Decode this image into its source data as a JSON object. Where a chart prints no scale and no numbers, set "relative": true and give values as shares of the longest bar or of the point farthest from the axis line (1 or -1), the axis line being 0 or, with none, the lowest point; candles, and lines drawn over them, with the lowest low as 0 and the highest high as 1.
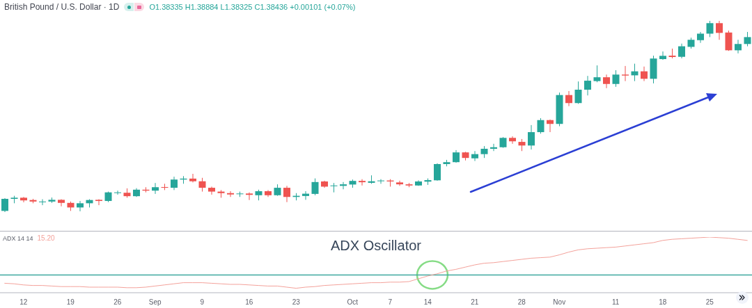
{
  "chart_data": [
    {
      "type": "candlestick",
      "title": "British Pound / U.S. Dollar · 1D",
      "annotations": [
        "O1.38335 H1.38884 L1.38325 C1.38436 +0.00101 (+0.07%)"
      ],
      "relative": true,
      "categories": [
        null,
        null,
        null,
        null,
        null,
        null,
        null,
        null,
        null,
        null,
        null,
        null,
        null,
        null,
        null,
        null,
        null,
        null,
        null,
        null,
        null,
        null,
        null,
        null,
        null,
        null,
        null,
        null,
        null,
        null,
        null,
        null,
        null,
        null,
        null,
        null,
        null,
        null,
        null,
        null,
        null,
        null,
        null,
        null,
        null,
        null,
        null,
        null,
        null,
        null,
        null,
        null,
        null,
        null,
        null,
        null,
        null,
        null,
        null,
        null,
        null,
        null,
        null,
        null,
        null,
        null,
        null,
        null,
        null,
        null,
        null,
        null,
        null,
        null,
        null,
        null,
        null,
        null,
        null,
        null
      ],
      "ohlc": [
        [
          0.006,
          0.073,
          0,
          0.069
        ],
        [
          0.069,
          0.085,
          0.046,
          0.075
        ],
        [
          0.075,
          0.079,
          0.051,
          0.061
        ],
        [
          0.063,
          0.069,
          0.046,
          0.055
        ],
        [
          0.052,
          0.067,
          0.036,
          0.055
        ],
        [
          0.055,
          0.076,
          0.048,
          0.064
        ],
        [
          0.064,
          0.067,
          0.03,
          0.048
        ],
        [
          0.048,
          0.055,
          0.006,
          0.024
        ],
        [
          0.024,
          0.058,
          0.004,
          0.046
        ],
        [
          0.046,
          0.067,
          0.024,
          0.063
        ],
        [
          0.064,
          0.067,
          0.036,
          0.058
        ],
        [
          0.058,
          0.107,
          0.052,
          0.103
        ],
        [
          0.101,
          0.112,
          0.091,
          0.103
        ],
        [
          0.101,
          0.124,
          0.075,
          0.083
        ],
        [
          0.083,
          0.125,
          0.079,
          0.117
        ],
        [
          0.117,
          0.13,
          0.103,
          0.112
        ],
        [
          0.112,
          0.152,
          0.095,
          0.13
        ],
        [
          0.131,
          0.148,
          0.115,
          0.127
        ],
        [
          0.127,
          0.185,
          0.115,
          0.17
        ],
        [
          0.17,
          0.188,
          0.148,
          0.175
        ],
        [
          0.175,
          0.2,
          0.155,
          0.161
        ],
        [
          0.161,
          0.179,
          0.107,
          0.127
        ],
        [
          0.127,
          0.133,
          0.091,
          0.107
        ],
        [
          0.107,
          0.115,
          0.075,
          0.099
        ],
        [
          0.099,
          0.109,
          0.079,
          0.092
        ],
        [
          0.095,
          0.107,
          0.079,
          0.097
        ],
        [
          0.097,
          0.103,
          0.063,
          0.09
        ],
        [
          0.088,
          0.117,
          0.061,
          0.109
        ],
        [
          0.109,
          0.115,
          0.079,
          0.088
        ],
        [
          0.088,
          0.145,
          0.085,
          0.127
        ],
        [
          0.127,
          0.137,
          0.052,
          0.079
        ],
        [
          0.079,
          0.099,
          0.061,
          0.085
        ],
        [
          0.084,
          0.109,
          0.064,
          0.096
        ],
        [
          0.095,
          0.176,
          0.088,
          0.157
        ],
        [
          0.16,
          0.164,
          0.127,
          0.133
        ],
        [
          0.136,
          0.152,
          0.103,
          0.139
        ],
        [
          0.137,
          0.157,
          0.119,
          0.145
        ],
        [
          0.144,
          0.17,
          0.127,
          0.163
        ],
        [
          0.163,
          0.172,
          0.139,
          0.156
        ],
        [
          0.153,
          0.192,
          0.148,
          0.161
        ],
        [
          0.163,
          0.172,
          0.148,
          0.165
        ],
        [
          0.165,
          0.172,
          0.133,
          0.16
        ],
        [
          0.155,
          0.164,
          0.137,
          0.145
        ],
        [
          0.145,
          0.152,
          0.13,
          0.139
        ],
        [
          0.139,
          0.166,
          0.137,
          0.16
        ],
        [
          0.159,
          0.176,
          0.142,
          0.167
        ],
        [
          0.166,
          0.255,
          0.164,
          0.251
        ],
        [
          0.251,
          0.273,
          0.239,
          0.261
        ],
        [
          0.261,
          0.324,
          0.258,
          0.312
        ],
        [
          0.312,
          0.315,
          0.27,
          0.283
        ],
        [
          0.281,
          0.319,
          0.267,
          0.303
        ],
        [
          0.303,
          0.345,
          0.283,
          0.331
        ],
        [
          0.331,
          0.357,
          0.319,
          0.339
        ],
        [
          0.339,
          0.392,
          0.336,
          0.388
        ],
        [
          0.388,
          0.396,
          0.357,
          0.37
        ],
        [
          0.367,
          0.382,
          0.319,
          0.348
        ],
        [
          0.348,
          0.455,
          0.327,
          0.418
        ],
        [
          0.418,
          0.491,
          0.41,
          0.481
        ],
        [
          0.481,
          0.484,
          0.418,
          0.461
        ],
        [
          0.461,
          0.625,
          0.449,
          0.612
        ],
        [
          0.612,
          0.633,
          0.554,
          0.57
        ],
        [
          0.57,
          0.683,
          0.566,
          0.64
        ],
        [
          0.64,
          0.712,
          0.61,
          0.687
        ],
        [
          0.685,
          0.767,
          0.679,
          0.705
        ],
        [
          0.705,
          0.719,
          0.648,
          0.67
        ],
        [
          0.67,
          0.742,
          0.655,
          0.719
        ],
        [
          0.719,
          0.764,
          0.685,
          0.714
        ],
        [
          0.715,
          0.776,
          0.685,
          0.736
        ],
        [
          0.736,
          0.761,
          0.685,
          0.697
        ],
        [
          0.697,
          0.818,
          0.673,
          0.803
        ],
        [
          0.8,
          0.84,
          0.796,
          0.817
        ],
        [
          0.818,
          0.855,
          0.804,
          0.811
        ],
        [
          0.812,
          0.881,
          0.804,
          0.867
        ],
        [
          0.864,
          0.912,
          0.855,
          0.901
        ],
        [
          0.899,
          0.942,
          0.885,
          0.933
        ],
        [
          0.933,
          1,
          0.915,
          0.988
        ],
        [
          0.988,
          1,
          0.901,
          0.937
        ],
        [
          0.939,
          0.949,
          0.843,
          0.846
        ],
        [
          0.846,
          0.901,
          0.83,
          0.879
        ],
        [
          0.879,
          0.942,
          0.867,
          0.915
        ]
      ],
      "colors": [
        "#26a69a",
        "#26a69a",
        "#ef5350",
        "#ef5350",
        "#26a69a",
        "#26a69a",
        "#ef5350",
        "#ef5350",
        "#26a69a",
        "#26a69a",
        "#ef5350",
        "#26a69a",
        "#26a69a",
        "#ef5350",
        "#26a69a",
        "#ef5350",
        "#26a69a",
        "#ef5350",
        "#26a69a",
        "#26a69a",
        "#ef5350",
        "#ef5350",
        "#ef5350",
        "#ef5350",
        "#ef5350",
        "#26a69a",
        "#ef5350",
        "#26a69a",
        "#ef5350",
        "#26a69a",
        "#ef5350",
        "#26a69a",
        "#26a69a",
        "#26a69a",
        "#ef5350",
        "#26a69a",
        "#26a69a",
        "#26a69a",
        "#ef5350",
        "#26a69a",
        "#26a69a",
        "#ef5350",
        "#ef5350",
        "#ef5350",
        "#26a69a",
        "#26a69a",
        "#26a69a",
        "#26a69a",
        "#26a69a",
        "#ef5350",
        "#26a69a",
        "#26a69a",
        "#26a69a",
        "#26a69a",
        "#ef5350",
        "#ef5350",
        "#26a69a",
        "#26a69a",
        "#ef5350",
        "#26a69a",
        "#ef5350",
        "#26a69a",
        "#26a69a",
        "#26a69a",
        "#ef5350",
        "#26a69a",
        "#ef5350",
        "#26a69a",
        "#ef5350",
        "#26a69a",
        "#26a69a",
        "#ef5350",
        "#26a69a",
        "#26a69a",
        "#26a69a",
        "#26a69a",
        "#ef5350",
        "#ef5350",
        "#26a69a",
        "#26a69a"
      ]
    },
    {
      "type": "line",
      "title": "ADX Oscillator",
      "annotations": [
        "15.20"
      ],
      "relative": true,
      "tick_labels": "x",
      "legend": "top left",
      "categories": [
        null,
        null,
        "12",
        null,
        null,
        null,
        null,
        "19",
        null,
        null,
        null,
        null,
        "26",
        null,
        null,
        null,
        "Sep",
        null,
        null,
        null,
        null,
        "9",
        null,
        null,
        null,
        null,
        "16",
        null,
        null,
        null,
        null,
        "23",
        null,
        null,
        null,
        null,
        null,
        "Oct",
        null,
        null,
        null,
        "7",
        null,
        null,
        null,
        "14",
        null,
        null,
        null,
        null,
        "21",
        null,
        null,
        null,
        null,
        "28",
        null,
        null,
        null,
        "Nov",
        null,
        null,
        null,
        null,
        null,
        "11",
        null,
        null,
        null,
        null,
        "18",
        null,
        null,
        null,
        null,
        "25",
        null,
        null,
        null,
        null
      ],
      "series": [
        {
          "name": "ADX 14 14",
          "color": "#f4a19a",
          "values": [
            0.17,
            0.16,
            0.14,
            0.13,
            0.13,
            0.12,
            0.11,
            0.11,
            0.11,
            0.1,
            0.1,
            0.1,
            0.1,
            0.09,
            0.09,
            0.1,
            0.12,
            0.14,
            0.16,
            0.18,
            0.18,
            0.18,
            0.17,
            0.16,
            0.15,
            0.15,
            0.14,
            0.13,
            0.12,
            0.12,
            0.1,
            0.08,
            0.1,
            0.11,
            0.13,
            0.14,
            0.15,
            0.16,
            0.17,
            0.18,
            0.18,
            0.19,
            0.19,
            0.2,
            0.25,
            0.3,
            0.34,
            0.39,
            0.42,
            0.46,
            0.5,
            0.53,
            0.54,
            0.56,
            0.58,
            0.6,
            0.62,
            0.63,
            0.64,
            0.68,
            0.73,
            0.77,
            0.79,
            0.8,
            0.81,
            0.82,
            0.84,
            0.86,
            0.88,
            0.9,
            0.94,
            0.96,
            0.97,
            0.98,
            0.99,
            1,
            0.99,
            0.98,
            0.96,
            0.94
          ]
        }
      ],
      "ref_lines": [
        {
          "axis": "y",
          "value": 0.32,
          "color": "#3ea89e"
        }
      ]
    }
  ]
}
